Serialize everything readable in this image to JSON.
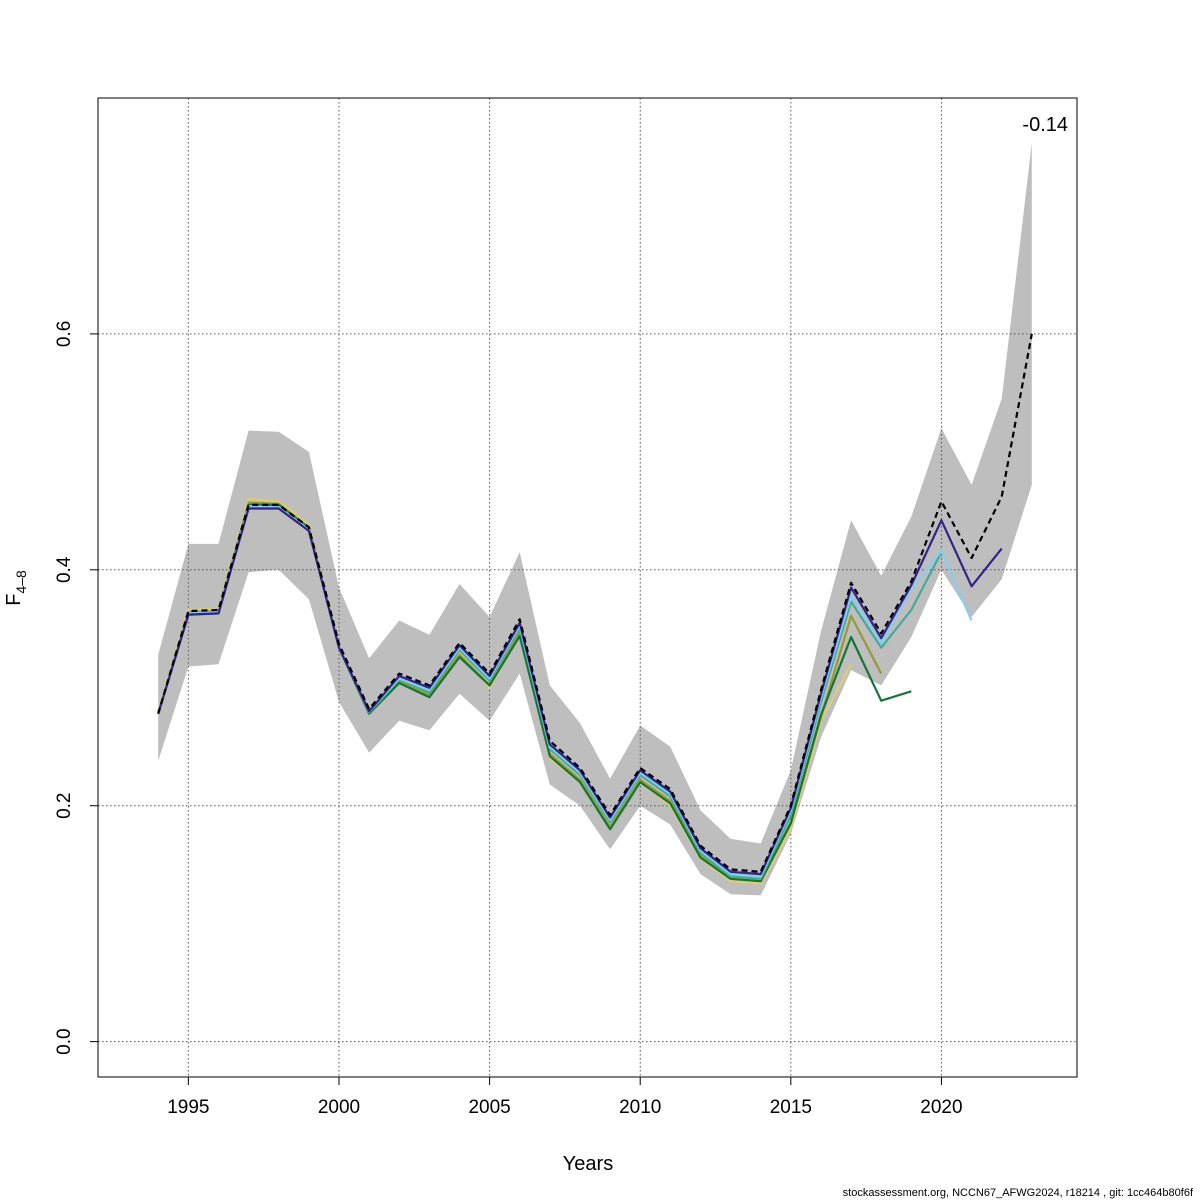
{
  "chart_data": {
    "type": "line",
    "xlabel": "Years",
    "ylabel_base": "F",
    "ylabel_sub": "4–8",
    "xlim": [
      1992,
      2024.5
    ],
    "ylim": [
      -0.03,
      0.8
    ],
    "x_ticks": [
      1995,
      2000,
      2005,
      2010,
      2015,
      2020
    ],
    "y_ticks": [
      0.0,
      0.2,
      0.4,
      0.6
    ],
    "y_tick_labels": [
      "0.0",
      "0.2",
      "0.4",
      "0.6"
    ],
    "grid": true,
    "annotation": "-0.14",
    "footer": "stockassessment.org, NCCN67_AFWG2024, r18214 , git: 1cc464b80f6f",
    "confidence_band": {
      "x": [
        1994,
        1995,
        1996,
        1997,
        1998,
        1999,
        2000,
        2001,
        2002,
        2003,
        2004,
        2005,
        2006,
        2007,
        2008,
        2009,
        2010,
        2011,
        2012,
        2013,
        2014,
        2015,
        2016,
        2017,
        2018,
        2019,
        2020,
        2021,
        2022,
        2023
      ],
      "lower": [
        0.238,
        0.318,
        0.32,
        0.398,
        0.4,
        0.375,
        0.288,
        0.245,
        0.272,
        0.264,
        0.295,
        0.272,
        0.312,
        0.218,
        0.2,
        0.163,
        0.2,
        0.184,
        0.142,
        0.125,
        0.124,
        0.176,
        0.258,
        0.315,
        0.302,
        0.343,
        0.4,
        0.36,
        0.392,
        0.472
      ],
      "upper": [
        0.328,
        0.422,
        0.422,
        0.518,
        0.517,
        0.5,
        0.385,
        0.325,
        0.357,
        0.345,
        0.388,
        0.36,
        0.415,
        0.302,
        0.27,
        0.223,
        0.268,
        0.25,
        0.196,
        0.172,
        0.168,
        0.23,
        0.348,
        0.442,
        0.395,
        0.445,
        0.52,
        0.472,
        0.545,
        0.762
      ]
    },
    "series": [
      {
        "color": "#000000",
        "dashed": true,
        "width": 2.2,
        "x": [
          1994,
          1995,
          1996,
          1997,
          1998,
          1999,
          2000,
          2001,
          2002,
          2003,
          2004,
          2005,
          2006,
          2007,
          2008,
          2009,
          2010,
          2011,
          2012,
          2013,
          2014,
          2015,
          2016,
          2017,
          2018,
          2019,
          2020,
          2021,
          2022,
          2023
        ],
        "values": [
          0.278,
          0.365,
          0.366,
          0.455,
          0.455,
          0.436,
          0.337,
          0.282,
          0.312,
          0.302,
          0.338,
          0.312,
          0.358,
          0.255,
          0.232,
          0.192,
          0.232,
          0.214,
          0.166,
          0.146,
          0.144,
          0.2,
          0.298,
          0.389,
          0.346,
          0.39,
          0.458,
          0.41,
          0.462,
          0.6
        ]
      },
      {
        "color": "#332288",
        "dashed": false,
        "width": 2.2,
        "x": [
          1994,
          1995,
          1996,
          1997,
          1998,
          1999,
          2000,
          2001,
          2002,
          2003,
          2004,
          2005,
          2006,
          2007,
          2008,
          2009,
          2010,
          2011,
          2012,
          2013,
          2014,
          2015,
          2016,
          2017,
          2018,
          2019,
          2020,
          2021,
          2022
        ],
        "values": [
          0.278,
          0.362,
          0.363,
          0.452,
          0.452,
          0.433,
          0.334,
          0.28,
          0.31,
          0.3,
          0.336,
          0.31,
          0.355,
          0.252,
          0.23,
          0.19,
          0.23,
          0.212,
          0.164,
          0.144,
          0.142,
          0.198,
          0.295,
          0.385,
          0.342,
          0.387,
          0.442,
          0.386,
          0.418
        ]
      },
      {
        "color": "#88CCEE",
        "dashed": false,
        "width": 2.2,
        "x": [
          1994,
          1995,
          1996,
          1997,
          1998,
          1999,
          2000,
          2001,
          2002,
          2003,
          2004,
          2005,
          2006,
          2007,
          2008,
          2009,
          2010,
          2011,
          2012,
          2013,
          2014,
          2015,
          2016,
          2017,
          2018,
          2019,
          2020,
          2021
        ],
        "values": [
          0.278,
          0.363,
          0.364,
          0.454,
          0.453,
          0.434,
          0.335,
          0.28,
          0.308,
          0.298,
          0.334,
          0.308,
          0.353,
          0.25,
          0.228,
          0.188,
          0.228,
          0.21,
          0.162,
          0.142,
          0.14,
          0.196,
          0.292,
          0.378,
          0.338,
          0.384,
          0.416,
          0.357
        ]
      },
      {
        "color": "#44AA99",
        "dashed": false,
        "width": 2.2,
        "x": [
          1994,
          1995,
          1996,
          1997,
          1998,
          1999,
          2000,
          2001,
          2002,
          2003,
          2004,
          2005,
          2006,
          2007,
          2008,
          2009,
          2010,
          2011,
          2012,
          2013,
          2014,
          2015,
          2016,
          2017,
          2018,
          2019,
          2020
        ],
        "values": [
          0.278,
          0.362,
          0.364,
          0.454,
          0.453,
          0.434,
          0.335,
          0.279,
          0.307,
          0.296,
          0.332,
          0.306,
          0.351,
          0.248,
          0.226,
          0.186,
          0.226,
          0.208,
          0.16,
          0.14,
          0.138,
          0.192,
          0.288,
          0.373,
          0.334,
          0.366,
          0.415
        ]
      },
      {
        "color": "#117733",
        "dashed": false,
        "width": 2.2,
        "x": [
          1994,
          1995,
          1996,
          1997,
          1998,
          1999,
          2000,
          2001,
          2002,
          2003,
          2004,
          2005,
          2006,
          2007,
          2008,
          2009,
          2010,
          2011,
          2012,
          2013,
          2014,
          2015,
          2016,
          2017,
          2018,
          2019
        ],
        "values": [
          0.278,
          0.362,
          0.363,
          0.455,
          0.455,
          0.435,
          0.334,
          0.278,
          0.304,
          0.292,
          0.326,
          0.302,
          0.344,
          0.242,
          0.22,
          0.18,
          0.22,
          0.202,
          0.156,
          0.138,
          0.136,
          0.185,
          0.277,
          0.343,
          0.289,
          0.297
        ]
      },
      {
        "color": "#999933",
        "dashed": false,
        "width": 2.2,
        "x": [
          1994,
          1995,
          1996,
          1997,
          1998,
          1999,
          2000,
          2001,
          2002,
          2003,
          2004,
          2005,
          2006,
          2007,
          2008,
          2009,
          2010,
          2011,
          2012,
          2013,
          2014,
          2015,
          2016,
          2017,
          2018
        ],
        "values": [
          0.278,
          0.364,
          0.365,
          0.457,
          0.456,
          0.436,
          0.335,
          0.279,
          0.305,
          0.294,
          0.328,
          0.302,
          0.347,
          0.244,
          0.222,
          0.182,
          0.222,
          0.204,
          0.158,
          0.138,
          0.136,
          0.186,
          0.275,
          0.361,
          0.312
        ]
      },
      {
        "color": "#DDCC77",
        "dashed": false,
        "width": 2.2,
        "x": [
          1994,
          1995,
          1996,
          1997,
          1998,
          1999,
          2000,
          2001,
          2002,
          2003,
          2004,
          2005,
          2006,
          2007,
          2008,
          2009,
          2010,
          2011,
          2012,
          2013,
          2014,
          2015,
          2016,
          2017
        ],
        "values": [
          0.28,
          0.366,
          0.367,
          0.46,
          0.458,
          0.438,
          0.336,
          0.28,
          0.306,
          0.296,
          0.33,
          0.3,
          0.345,
          0.24,
          0.22,
          0.18,
          0.22,
          0.2,
          0.155,
          0.136,
          0.134,
          0.18,
          0.272,
          0.32
        ]
      }
    ]
  }
}
